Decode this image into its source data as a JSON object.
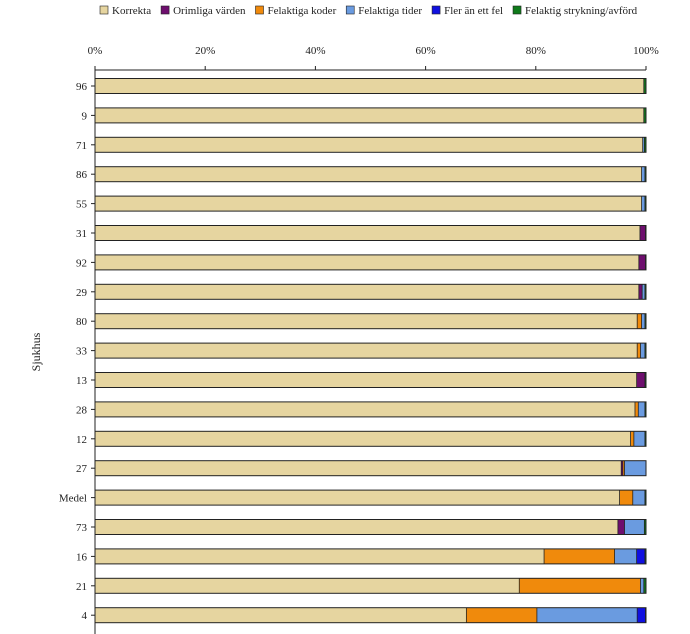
{
  "chart_data": {
    "type": "bar",
    "orientation": "horizontal",
    "stacked": true,
    "ylabel": "Sjukhus",
    "xlabel": "",
    "xlim": [
      0,
      100
    ],
    "x_ticks": [
      "0%",
      "20%",
      "40%",
      "60%",
      "80%",
      "100%"
    ],
    "legend_position": "top",
    "grid": false,
    "categories": [
      "96",
      "9",
      "71",
      "86",
      "55",
      "31",
      "92",
      "29",
      "80",
      "33",
      "13",
      "28",
      "12",
      "27",
      "Medel",
      "73",
      "16",
      "21",
      "4"
    ],
    "series": [
      {
        "name": "Korrekta",
        "color": "#E6D5A0",
        "values": [
          99.6,
          99.6,
          99.4,
          99.2,
          99.2,
          98.9,
          98.7,
          98.7,
          98.4,
          98.4,
          98.3,
          98.0,
          97.2,
          95.5,
          95.2,
          94.9,
          81.5,
          77.0,
          67.4
        ]
      },
      {
        "name": "Orimliga värden",
        "color": "#6E0F6E",
        "values": [
          0.0,
          0.0,
          0.0,
          0.0,
          0.0,
          1.0,
          1.2,
          0.6,
          0.0,
          0.0,
          1.5,
          0.0,
          0.0,
          0.3,
          0.0,
          1.2,
          0.0,
          0.0,
          0.0
        ]
      },
      {
        "name": "Felaktiga koder",
        "color": "#F08A0C",
        "values": [
          0.0,
          0.0,
          0.0,
          0.0,
          0.0,
          0.0,
          0.0,
          0.0,
          0.8,
          0.6,
          0.0,
          0.6,
          0.6,
          0.3,
          2.4,
          0.0,
          12.8,
          22.0,
          12.8
        ]
      },
      {
        "name": "Felaktiga tider",
        "color": "#6A9BE0",
        "values": [
          0.0,
          0.0,
          0.3,
          0.6,
          0.6,
          0.0,
          0.0,
          0.5,
          0.6,
          0.8,
          0.0,
          1.2,
          2.0,
          3.9,
          2.2,
          3.6,
          4.0,
          0.6,
          18.2
        ]
      },
      {
        "name": "Fler än ett fel",
        "color": "#1010E0",
        "values": [
          0.0,
          0.0,
          0.0,
          0.0,
          0.0,
          0.0,
          0.0,
          0.0,
          0.0,
          0.0,
          0.0,
          0.0,
          0.0,
          0.0,
          0.0,
          0.0,
          1.5,
          0.0,
          1.5
        ]
      },
      {
        "name": "Felaktig strykning/avförd",
        "color": "#0F7A1A",
        "values": [
          0.4,
          0.4,
          0.3,
          0.2,
          0.2,
          0.1,
          0.1,
          0.2,
          0.2,
          0.2,
          0.2,
          0.2,
          0.2,
          0.0,
          0.2,
          0.3,
          0.2,
          0.4,
          0.1
        ]
      }
    ]
  }
}
